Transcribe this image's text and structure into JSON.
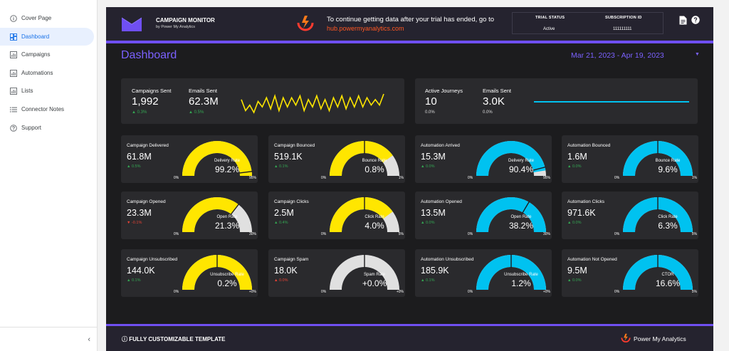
{
  "sidebar": {
    "items": [
      {
        "label": "Cover Page",
        "icon": "info-icon",
        "active": false
      },
      {
        "label": "Dashboard",
        "icon": "dashboard-icon",
        "active": true
      },
      {
        "label": "Campaigns",
        "icon": "chart-icon",
        "active": false
      },
      {
        "label": "Automations",
        "icon": "chart-icon",
        "active": false
      },
      {
        "label": "Lists",
        "icon": "chart-icon",
        "active": false
      },
      {
        "label": "Connector Notes",
        "icon": "list-icon",
        "active": false
      },
      {
        "label": "Support",
        "icon": "help-icon",
        "active": false
      }
    ],
    "collapse_glyph": "‹"
  },
  "header": {
    "brand_title": "CAMPAIGN MONITOR",
    "brand_subtitle": "by Power My Analytics",
    "trial_message": "To continue getting data after your trial has ended, go to",
    "trial_link": "hub.powermyanalytics.com",
    "status_headers": [
      "TRIAL STATUS",
      "SUBSCRIPTION ID"
    ],
    "status_values": [
      "Active",
      "111111111"
    ]
  },
  "dashboard": {
    "title": "Dashboard",
    "date_range": "Mar 21, 2023 - Apr 19, 2023"
  },
  "colors": {
    "yellow": "#ffe600",
    "cyan": "#00c2f0",
    "track": "#e0e0e0",
    "accent": "#6f4ff2",
    "positive": "#34a853",
    "negative": "#ea4335"
  },
  "summary_left": {
    "campaigns_sent": {
      "label": "Campaigns Sent",
      "value": "1,992",
      "delta": "▲ 0.3%"
    },
    "emails_sent": {
      "label": "Emails Sent",
      "value": "62.3M",
      "delta": "▲ 0.5%"
    },
    "sparkline": [
      5,
      2,
      3.5,
      1.5,
      4.5,
      3,
      5.5,
      2.5,
      6,
      2,
      5.5,
      3,
      5.5,
      3.5,
      6,
      2,
      5,
      3,
      6,
      2.5,
      5,
      2,
      5.5,
      3,
      6,
      2.5,
      5.5,
      3,
      6,
      3,
      5.5,
      3.5,
      5,
      3.5,
      6.5
    ]
  },
  "summary_right": {
    "active_journeys": {
      "label": "Active Journeys",
      "value": "10",
      "delta": "0.0%"
    },
    "emails_sent": {
      "label": "Emails Sent",
      "value": "3.0K",
      "delta": "0.0%"
    }
  },
  "cards": [
    {
      "label": "Campaign Delivered",
      "value": "61.8M",
      "delta": "▲ 0.5%",
      "trend": "up",
      "gauge_label": "Delivery Rate",
      "gauge_value": "99.2%",
      "min": "0%",
      "max": "95%",
      "fill": 1.0,
      "marker": 0.96,
      "color": "yellow"
    },
    {
      "label": "Campaign Bounced",
      "value": "519.1K",
      "delta": "▲ 0.1%",
      "trend": "up",
      "gauge_label": "Bounce Rate",
      "gauge_value": "0.8%",
      "min": "0%",
      "max": "1%",
      "fill": 0.8,
      "marker": 0.5,
      "color": "yellow"
    },
    {
      "label": "Automation Arrived",
      "value": "15.3M",
      "delta": "▲ 0.0%",
      "trend": "up",
      "gauge_label": "Delivery Rate",
      "gauge_value": "90.4%",
      "min": "0%",
      "max": "95%",
      "fill": 0.95,
      "marker": 0.92,
      "color": "cyan"
    },
    {
      "label": "Automation Bounced",
      "value": "1.6M",
      "delta": "▲ 0.0%",
      "trend": "up",
      "gauge_label": "Bounce Rate",
      "gauge_value": "9.6%",
      "min": "0%",
      "max": "1%",
      "fill": 1.0,
      "marker": 0.5,
      "color": "cyan"
    },
    {
      "label": "Campaign Opened",
      "value": "23.3M",
      "delta": "▼ -0.1%",
      "trend": "down",
      "gauge_label": "Open Rate",
      "gauge_value": "21.3%",
      "min": "0%",
      "max": "30%",
      "fill": 0.71,
      "marker": 0.71,
      "color": "yellow"
    },
    {
      "label": "Campaign Clicks",
      "value": "2.5M",
      "delta": "▲ 0.4%",
      "trend": "up",
      "gauge_label": "Click Rate",
      "gauge_value": "4.0%",
      "min": "0%",
      "max": "5%",
      "fill": 0.8,
      "marker": 0.5,
      "color": "yellow"
    },
    {
      "label": "Automation Opened",
      "value": "13.5M",
      "delta": "▲ 0.0%",
      "trend": "up",
      "gauge_label": "Open Rate",
      "gauge_value": "38.2%",
      "min": "0%",
      "max": "30%",
      "fill": 1.0,
      "marker": 0.67,
      "color": "cyan"
    },
    {
      "label": "Automation Clicks",
      "value": "971.6K",
      "delta": "▲ 0.0%",
      "trend": "up",
      "gauge_label": "Click Rate",
      "gauge_value": "6.3%",
      "min": "0%",
      "max": "5%",
      "fill": 1.0,
      "marker": 0.5,
      "color": "cyan"
    },
    {
      "label": "Campaign Unsubscribed",
      "value": "144.0K",
      "delta": "▲ 0.1%",
      "trend": "up",
      "gauge_label": "Unsubscribe Rate",
      "gauge_value": "0.2%",
      "min": "0%",
      "max": "+0%",
      "fill": 1.0,
      "marker": 0.5,
      "color": "yellow"
    },
    {
      "label": "Campaign Spam",
      "value": "18.0K",
      "delta": "▲ 0.0%",
      "trend": "down",
      "gauge_label": "Spam Rate",
      "gauge_value": "+0.0%",
      "min": "0%",
      "max": "+0%",
      "fill": 0.0,
      "marker": 0.5,
      "color": "yellow"
    },
    {
      "label": "Automation Unsubscribed",
      "value": "185.9K",
      "delta": "▲ 0.1%",
      "trend": "up",
      "gauge_label": "Unsubscribe Rate",
      "gauge_value": "1.2%",
      "min": "0%",
      "max": "+0%",
      "fill": 1.0,
      "marker": 0.5,
      "color": "cyan"
    },
    {
      "label": "Automation Not Opened",
      "value": "9.5M",
      "delta": "▲ 0.0%",
      "trend": "up",
      "gauge_label": "CTOR",
      "gauge_value": "16.6%",
      "min": "0%",
      "max": "5%",
      "fill": 1.0,
      "marker": 0.5,
      "color": "cyan"
    }
  ],
  "footer": {
    "left_text": "FULLY CUSTOMIZABLE TEMPLATE",
    "brand": "Power My Analytics"
  }
}
